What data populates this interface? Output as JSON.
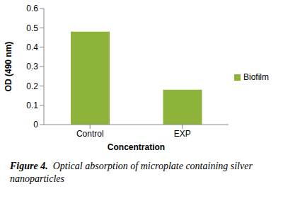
{
  "chart_data": {
    "type": "bar",
    "categories": [
      "Control",
      "EXP"
    ],
    "series": [
      {
        "name": "Biofilm",
        "color": "#8db33a",
        "values": [
          0.48,
          0.18
        ]
      }
    ],
    "x_label": "Concentration",
    "y_label": "OD (490 nm)",
    "ylim": [
      0,
      0.6
    ],
    "yticks": [
      0,
      0.1,
      0.2,
      0.3,
      0.4,
      0.5,
      0.6
    ],
    "grid": false,
    "legend": "right"
  },
  "caption": {
    "label": "Figure 4.",
    "text": "Optical absorption of microplate containing silver nanoparticles"
  }
}
